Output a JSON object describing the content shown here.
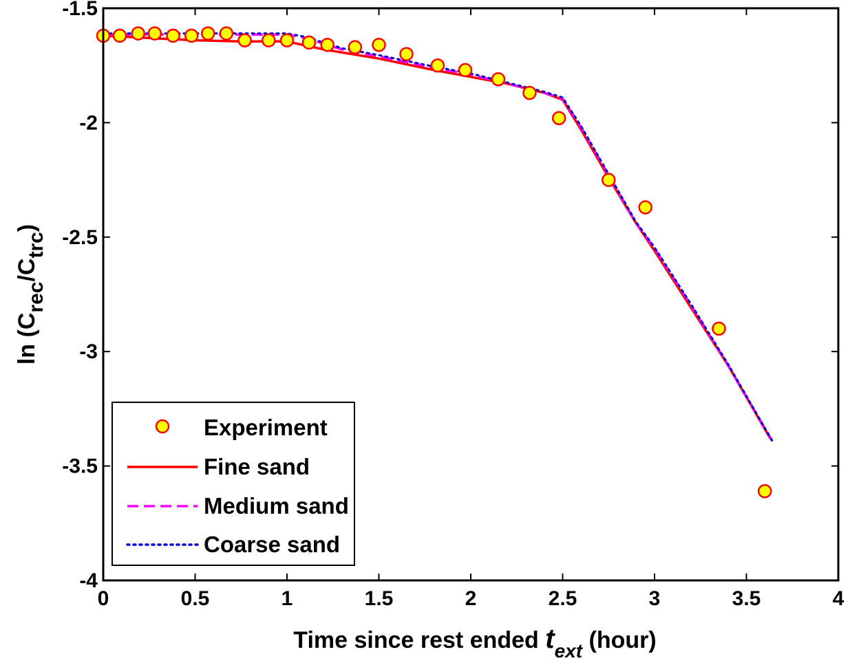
{
  "chart_data": {
    "type": "line",
    "xlabel": {
      "main": "Time since rest ended ",
      "var": "t",
      "sub": "ext",
      "unit": " (hour)"
    },
    "ylabel": {
      "prefix": "ln (C",
      "sub1": "rec",
      "mid": "/C",
      "sub2": "trc",
      "suffix": ")"
    },
    "xlim": [
      0,
      4
    ],
    "ylim": [
      -4,
      -1.5
    ],
    "xticks": [
      0,
      0.5,
      1,
      1.5,
      2,
      2.5,
      3,
      3.5,
      4
    ],
    "xtick_labels": [
      "0",
      "0.5",
      "1",
      "1.5",
      "2",
      "2.5",
      "3",
      "3.5",
      "4"
    ],
    "yticks": [
      -4,
      -3.5,
      -3,
      -2.5,
      -2,
      -1.5
    ],
    "ytick_labels": [
      "-4",
      "-3.5",
      "-3",
      "-2.5",
      "-2",
      "-1.5"
    ],
    "grid": false,
    "legend_position": "bottom-left",
    "series": [
      {
        "name": "Experiment",
        "kind": "markers",
        "color": "#ffff00",
        "edge_color": "#ff0000",
        "x": [
          0,
          0.09,
          0.19,
          0.28,
          0.38,
          0.48,
          0.57,
          0.67,
          0.77,
          0.9,
          1.0,
          1.12,
          1.22,
          1.37,
          1.5,
          1.65,
          1.82,
          1.97,
          2.15,
          2.32,
          2.48,
          2.75,
          2.95,
          3.35,
          3.6
        ],
        "y": [
          -1.62,
          -1.62,
          -1.61,
          -1.61,
          -1.62,
          -1.62,
          -1.61,
          -1.61,
          -1.64,
          -1.64,
          -1.64,
          -1.65,
          -1.66,
          -1.67,
          -1.66,
          -1.7,
          -1.75,
          -1.77,
          -1.81,
          -1.87,
          -1.98,
          -2.25,
          -2.37,
          -2.9,
          -3.61
        ]
      },
      {
        "name": "Fine sand",
        "kind": "solid",
        "color": "#ff0000",
        "x": [
          0,
          0.25,
          0.5,
          0.75,
          1.0,
          1.2,
          1.5,
          1.8,
          2.0,
          2.2,
          2.4,
          2.5,
          2.6,
          2.75,
          2.9,
          3.0,
          3.2,
          3.4,
          3.63
        ],
        "y": [
          -1.62,
          -1.63,
          -1.64,
          -1.645,
          -1.645,
          -1.68,
          -1.72,
          -1.77,
          -1.8,
          -1.83,
          -1.87,
          -1.9,
          -2.03,
          -2.24,
          -2.44,
          -2.56,
          -2.81,
          -3.06,
          -3.38
        ]
      },
      {
        "name": "Medium sand",
        "kind": "dashed",
        "color": "#ff00ff",
        "x": [
          0,
          0.25,
          0.5,
          0.75,
          1.0,
          1.1,
          1.3,
          1.5,
          1.8,
          2.0,
          2.2,
          2.4,
          2.5,
          2.6,
          2.75,
          2.9,
          3.0,
          3.2,
          3.4,
          3.64
        ],
        "y": [
          -1.615,
          -1.615,
          -1.615,
          -1.615,
          -1.615,
          -1.63,
          -1.68,
          -1.71,
          -1.76,
          -1.79,
          -1.83,
          -1.87,
          -1.895,
          -2.02,
          -2.23,
          -2.44,
          -2.55,
          -2.8,
          -3.06,
          -3.39
        ]
      },
      {
        "name": "Coarse sand",
        "kind": "dotted",
        "color": "#0000cc",
        "x": [
          0,
          0.25,
          0.5,
          0.75,
          1.0,
          1.1,
          1.3,
          1.5,
          1.8,
          2.0,
          2.2,
          2.4,
          2.5,
          2.6,
          2.75,
          2.9,
          3.0,
          3.2,
          3.4,
          3.64
        ],
        "y": [
          -1.61,
          -1.61,
          -1.61,
          -1.61,
          -1.61,
          -1.625,
          -1.675,
          -1.705,
          -1.755,
          -1.785,
          -1.825,
          -1.865,
          -1.89,
          -2.015,
          -2.225,
          -2.435,
          -2.545,
          -2.795,
          -3.055,
          -3.39
        ]
      }
    ]
  }
}
